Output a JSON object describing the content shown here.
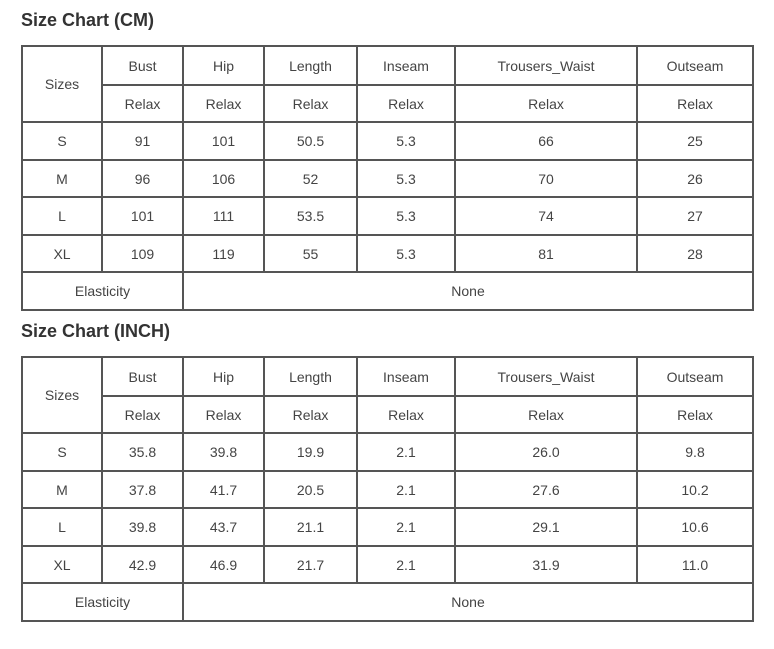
{
  "tables": [
    {
      "title": "Size Chart (CM)",
      "sizes_label": "Sizes",
      "columns": [
        "Bust",
        "Hip",
        "Length",
        "Inseam",
        "Trousers_Waist",
        "Outseam"
      ],
      "sub": "Relax",
      "rows": [
        [
          "S",
          "91",
          "101",
          "50.5",
          "5.3",
          "66",
          "25"
        ],
        [
          "M",
          "96",
          "106",
          "52",
          "5.3",
          "70",
          "26"
        ],
        [
          "L",
          "101",
          "111",
          "53.5",
          "5.3",
          "74",
          "27"
        ],
        [
          "XL",
          "109",
          "119",
          "55",
          "5.3",
          "81",
          "28"
        ]
      ],
      "elasticity_label": "Elasticity",
      "elasticity": "None"
    },
    {
      "title": "Size Chart (INCH)",
      "sizes_label": "Sizes",
      "columns": [
        "Bust",
        "Hip",
        "Length",
        "Inseam",
        "Trousers_Waist",
        "Outseam"
      ],
      "sub": "Relax",
      "rows": [
        [
          "S",
          "35.8",
          "39.8",
          "19.9",
          "2.1",
          "26.0",
          "9.8"
        ],
        [
          "M",
          "37.8",
          "41.7",
          "20.5",
          "2.1",
          "27.6",
          "10.2"
        ],
        [
          "L",
          "39.8",
          "43.7",
          "21.1",
          "2.1",
          "29.1",
          "10.6"
        ],
        [
          "XL",
          "42.9",
          "46.9",
          "21.7",
          "2.1",
          "31.9",
          "11.0"
        ]
      ],
      "elasticity_label": "Elasticity",
      "elasticity": "None"
    }
  ]
}
